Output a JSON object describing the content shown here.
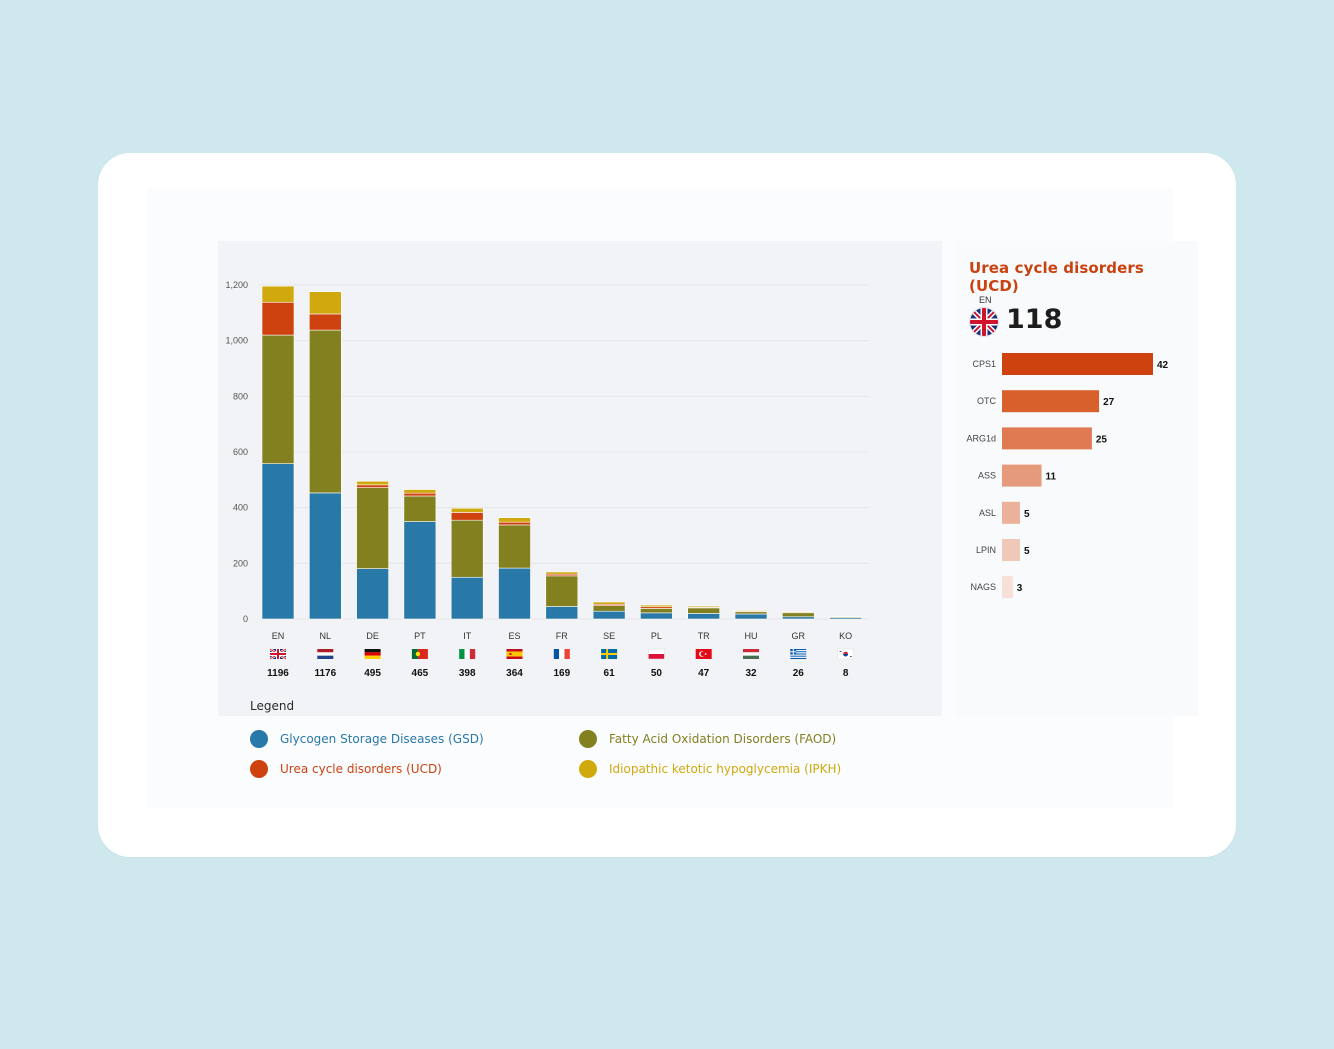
{
  "chart_data": [
    {
      "type": "bar",
      "stacked": true,
      "title": "",
      "xlabel": "",
      "ylabel": "",
      "ylim": [
        0,
        1200
      ],
      "yticks": [
        0,
        200,
        400,
        600,
        800,
        1000,
        1200
      ],
      "ytick_labels": [
        "0",
        "200",
        "400",
        "600",
        "800",
        "1,000",
        "1,200"
      ],
      "grid": true,
      "categories": [
        "EN",
        "NL",
        "DE",
        "PT",
        "IT",
        "ES",
        "FR",
        "SE",
        "PL",
        "TR",
        "HU",
        "GR",
        "KO"
      ],
      "totals": [
        1196,
        1176,
        495,
        465,
        398,
        364,
        169,
        61,
        50,
        47,
        32,
        26,
        8
      ],
      "series": [
        {
          "name": "Glycogen Storage Diseases (GSD)",
          "color": "#2878a8",
          "values": [
            558,
            453,
            181,
            350,
            150,
            183,
            45,
            28,
            22,
            20,
            18,
            8,
            5
          ]
        },
        {
          "name": "Fatty Acid Oxidation Disorders (FAOD)",
          "color": "#838020",
          "values": [
            462,
            585,
            291,
            92,
            205,
            155,
            110,
            20,
            16,
            20,
            8,
            16,
            3
          ]
        },
        {
          "name": "Urea cycle disorders (UCD)",
          "color": "#cd420f",
          "values": [
            118,
            58,
            10,
            10,
            28,
            10,
            6,
            5,
            6,
            3,
            3,
            1,
            0
          ]
        },
        {
          "name": "Idiopathic ketotic hypoglycemia (IPKH)",
          "color": "#cfa90d",
          "values": [
            58,
            80,
            13,
            13,
            15,
            16,
            8,
            8,
            6,
            4,
            3,
            1,
            0
          ]
        }
      ]
    },
    {
      "type": "bar",
      "orientation": "horizontal",
      "title": "Urea cycle disorders (UCD)",
      "country": "EN",
      "total": "118",
      "categories": [
        "CPS1",
        "OTC",
        "ARG1d",
        "ASS",
        "ASL",
        "LPIN",
        "NAGS"
      ],
      "values": [
        42,
        27,
        25,
        11,
        5,
        5,
        3
      ],
      "colors": [
        "#cd420f",
        "#d8602d",
        "#e07a53",
        "#e69a7c",
        "#ebb19a",
        "#f0c8b7",
        "#f6e0d7"
      ],
      "xlim": [
        0,
        42
      ]
    }
  ],
  "legend": {
    "title": "Legend",
    "items": [
      {
        "label": "Glycogen Storage Diseases (GSD)",
        "color": "#2878a8"
      },
      {
        "label": "Fatty Acid Oxidation Disorders (FAOD)",
        "color": "#838020"
      },
      {
        "label": "Urea cycle disorders (UCD)",
        "color": "#cd420f"
      },
      {
        "label": "Idiopathic ketotic hypoglycemia (IPKH)",
        "color": "#cfa90d"
      }
    ]
  },
  "flags": {
    "EN": "uk-flag-icon",
    "NL": "netherlands-flag-icon",
    "DE": "germany-flag-icon",
    "PT": "portugal-flag-icon",
    "IT": "italy-flag-icon",
    "ES": "spain-flag-icon",
    "FR": "france-flag-icon",
    "SE": "sweden-flag-icon",
    "PL": "poland-flag-icon",
    "TR": "turkey-flag-icon",
    "HU": "hungary-flag-icon",
    "GR": "greece-flag-icon",
    "KO": "korea-flag-icon"
  }
}
